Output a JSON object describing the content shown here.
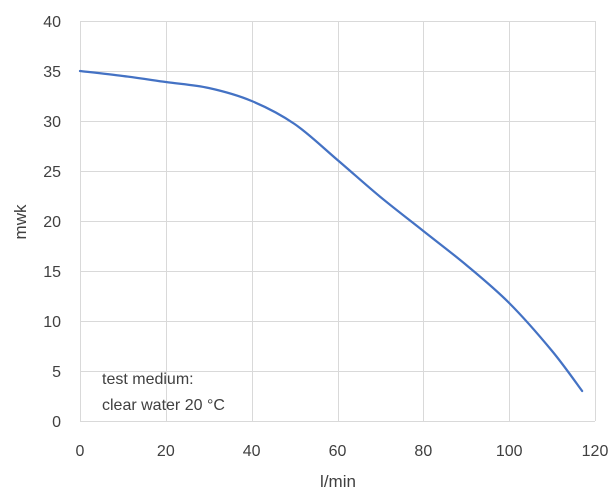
{
  "chart_data": {
    "type": "line",
    "xlabel": "l/min",
    "ylabel": "mwk",
    "xlim": [
      0,
      120
    ],
    "ylim": [
      0,
      40
    ],
    "xticks": [
      0,
      20,
      40,
      60,
      80,
      100,
      120
    ],
    "yticks": [
      0,
      5,
      10,
      15,
      20,
      25,
      30,
      35,
      40
    ],
    "grid": true,
    "series": [
      {
        "color": "#4472c4",
        "x": [
          0,
          10,
          20,
          30,
          40,
          50,
          60,
          70,
          80,
          90,
          100,
          110,
          117
        ],
        "y": [
          35,
          34.5,
          33.9,
          33.3,
          32,
          29.7,
          26.1,
          22.4,
          19,
          15.6,
          11.8,
          7,
          3
        ]
      }
    ],
    "annotations": [
      "test medium:",
      "clear water 20 °C"
    ]
  }
}
